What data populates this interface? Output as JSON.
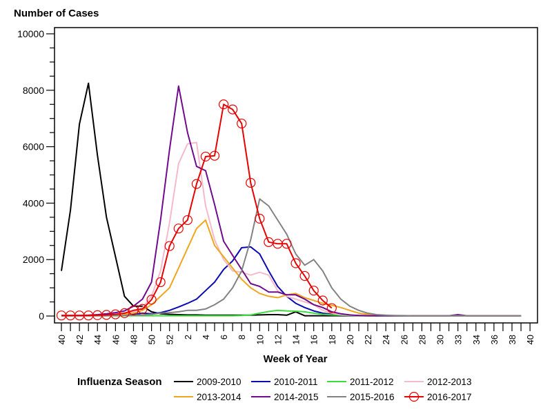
{
  "chart_data": {
    "type": "line",
    "ylabel": "Number of Cases",
    "xlabel": "Week of Year",
    "ylim": [
      0,
      10000
    ],
    "yticks": [
      0,
      2000,
      4000,
      6000,
      8000,
      10000
    ],
    "yticks_labels": [
      "0",
      "2000",
      "4000",
      "6000",
      "8000",
      "10000"
    ],
    "y_minor_step": 500,
    "x_weeks": [
      40,
      41,
      42,
      43,
      44,
      45,
      46,
      47,
      48,
      49,
      50,
      51,
      52,
      1,
      2,
      3,
      4,
      5,
      6,
      7,
      8,
      9,
      10,
      11,
      12,
      13,
      14,
      15,
      16,
      17,
      18,
      19,
      20,
      21,
      22,
      23,
      24,
      25,
      26,
      27,
      28,
      29,
      30,
      31,
      32,
      33,
      34,
      35,
      36,
      37,
      38,
      39,
      40
    ],
    "xtick_labels": [
      "40",
      "42",
      "44",
      "46",
      "48",
      "50",
      "52",
      "2",
      "4",
      "6",
      "8",
      "10",
      "12",
      "14",
      "16",
      "18",
      "20",
      "22",
      "24",
      "26",
      "28",
      "30",
      "33",
      "34",
      "36",
      "38",
      "40"
    ],
    "grid": false,
    "legend": {
      "title": "Influenza Season",
      "placement": "bottom"
    },
    "series": [
      {
        "name": "2009-2010",
        "color": "#000000",
        "marker": "none",
        "values": [
          1600,
          3750,
          6800,
          8250,
          5700,
          3500,
          2100,
          700,
          350,
          350,
          150,
          80,
          60,
          50,
          40,
          40,
          30,
          30,
          30,
          30,
          30,
          30,
          40,
          50,
          50,
          30,
          150,
          10,
          10,
          10,
          10,
          10,
          10,
          10,
          10,
          10,
          10,
          10,
          10,
          10,
          10,
          10,
          10,
          10,
          10,
          10,
          10,
          10,
          10,
          10,
          10,
          10
        ]
      },
      {
        "name": "2010-2011",
        "color": "#0a0ab4",
        "marker": "none",
        "values": [
          20,
          20,
          20,
          20,
          20,
          20,
          30,
          40,
          60,
          100,
          80,
          120,
          200,
          320,
          450,
          600,
          900,
          1200,
          1650,
          1950,
          2420,
          2450,
          2200,
          1600,
          1050,
          700,
          450,
          300,
          180,
          100,
          60,
          40,
          30,
          20,
          15,
          10,
          10,
          10,
          10,
          10,
          10,
          10,
          10,
          10,
          10,
          10,
          10,
          10,
          10,
          10,
          10,
          10
        ]
      },
      {
        "name": "2011-2012",
        "color": "#3cdc3c",
        "marker": "none",
        "values": [
          10,
          10,
          10,
          10,
          10,
          10,
          10,
          10,
          10,
          10,
          10,
          10,
          10,
          10,
          10,
          10,
          10,
          10,
          10,
          10,
          20,
          40,
          100,
          160,
          200,
          180,
          170,
          150,
          100,
          60,
          40,
          30,
          20,
          15,
          10,
          10,
          10,
          10,
          10,
          10,
          10,
          10,
          10,
          10,
          10,
          10,
          10,
          10,
          10,
          10,
          10,
          10
        ]
      },
      {
        "name": "2012-2013",
        "color": "#f5b9c8",
        "marker": "none",
        "values": [
          10,
          10,
          10,
          10,
          10,
          20,
          40,
          80,
          150,
          300,
          700,
          1600,
          3300,
          5400,
          6100,
          6150,
          3900,
          2700,
          2000,
          1600,
          1550,
          1450,
          1550,
          1450,
          900,
          700,
          600,
          500,
          400,
          200,
          100,
          50,
          30,
          20,
          15,
          10,
          10,
          10,
          10,
          10,
          10,
          10,
          10,
          10,
          10,
          10,
          10,
          10,
          10,
          10,
          10,
          10
        ]
      },
      {
        "name": "2013-2014",
        "color": "#f0a51e",
        "marker": "none",
        "values": [
          10,
          10,
          10,
          10,
          20,
          30,
          40,
          60,
          100,
          200,
          400,
          700,
          1000,
          1700,
          2400,
          3100,
          3400,
          2500,
          2100,
          1700,
          1300,
          1000,
          800,
          700,
          650,
          750,
          800,
          650,
          550,
          450,
          380,
          300,
          200,
          100,
          60,
          30,
          20,
          15,
          10,
          10,
          10,
          10,
          10,
          10,
          10,
          10,
          10,
          10,
          10,
          10,
          10,
          10
        ]
      },
      {
        "name": "2014-2015",
        "color": "#6e0a8c",
        "marker": "none",
        "values": [
          10,
          10,
          20,
          30,
          50,
          80,
          120,
          180,
          350,
          600,
          1200,
          3400,
          5900,
          8150,
          6500,
          5300,
          5150,
          3950,
          2650,
          2150,
          1650,
          1150,
          1050,
          850,
          850,
          750,
          750,
          600,
          400,
          300,
          150,
          80,
          40,
          20,
          10,
          10,
          10,
          10,
          10,
          10,
          10,
          10,
          10,
          10,
          50,
          10,
          10,
          10,
          10,
          10,
          10,
          10
        ]
      },
      {
        "name": "2015-2016",
        "color": "#828282",
        "marker": "none",
        "values": [
          10,
          10,
          10,
          10,
          10,
          10,
          20,
          20,
          30,
          40,
          60,
          100,
          120,
          150,
          200,
          200,
          250,
          400,
          600,
          1000,
          1600,
          2700,
          4150,
          3900,
          3400,
          2900,
          2200,
          1800,
          2000,
          1600,
          1000,
          600,
          350,
          200,
          100,
          50,
          30,
          20,
          15,
          10,
          10,
          10,
          10,
          10,
          10,
          10,
          10,
          10,
          10,
          10,
          10,
          10
        ]
      },
      {
        "name": "2016-2017",
        "color": "#e60000",
        "marker": "circle",
        "values": [
          20,
          20,
          20,
          20,
          30,
          40,
          60,
          100,
          200,
          250,
          580,
          1200,
          2480,
          3100,
          3400,
          4680,
          5650,
          5680,
          7500,
          7320,
          6820,
          4720,
          3450,
          2620,
          2560,
          2560,
          1870,
          1420,
          900,
          550,
          280
        ]
      }
    ]
  }
}
